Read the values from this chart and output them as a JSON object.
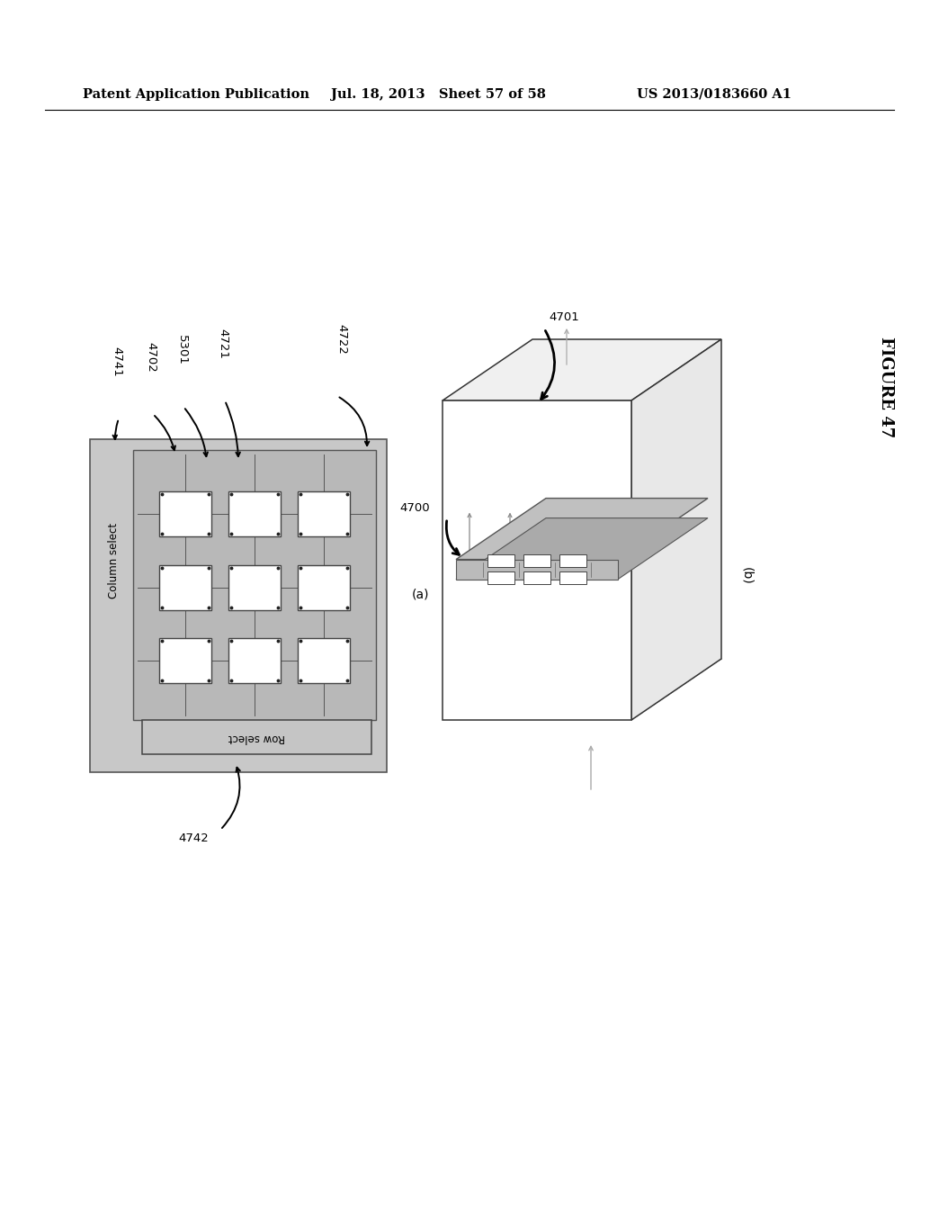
{
  "header_left": "Patent Application Publication",
  "header_mid": "Jul. 18, 2013   Sheet 57 of 58",
  "header_right": "US 2013/0183660 A1",
  "figure_label": "FIGURE 47",
  "bg_color": "#ffffff",
  "panel_gray": "#cccccc",
  "inner_gray": "#bbbbbb",
  "cell_white": "#ffffff",
  "line_dark": "#444444",
  "label_4741": "4741",
  "label_4702": "4702",
  "label_5301": "5301",
  "label_4721": "4721",
  "label_4722": "4722",
  "label_4742": "4742",
  "label_4701": "4701",
  "label_4700": "4700",
  "label_a": "(a)",
  "label_b": "(b)"
}
